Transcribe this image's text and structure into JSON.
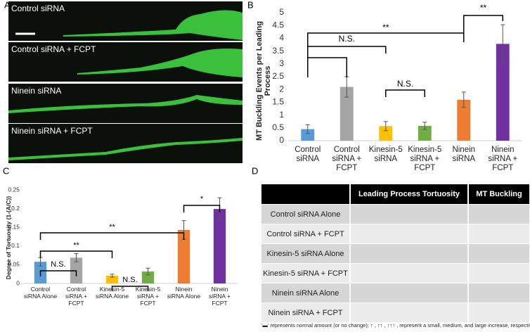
{
  "panel_labels": [
    "A",
    "B",
    "C",
    "D"
  ],
  "images": [
    "Control siRNA",
    "Control siRNA + FCPT",
    "Ninein siRNA",
    "Ninein siRNA + FCPT"
  ],
  "chart_data": [
    {
      "type": "bar",
      "y_label": "MT Buckling Events per Leading Process",
      "categories": [
        "Control siRNA",
        "Control siRNA + FCPT",
        "Kinesin-5 siRNA",
        "Kinesin-5 siRNA + FCPT",
        "Ninein siRNA",
        "Ninein siRNA + FCPT"
      ],
      "values": [
        0.45,
        2.1,
        0.57,
        0.58,
        1.6,
        3.78
      ],
      "errors": [
        0.17,
        0.4,
        0.18,
        0.14,
        0.3,
        0.75
      ],
      "colors": [
        "#5b9bd5",
        "#a5a5a5",
        "#ffc000",
        "#70ad47",
        "#ed7d31",
        "#7030a0"
      ],
      "ylim": [
        0,
        5
      ],
      "yticks": [
        0,
        0.5,
        1,
        1.5,
        2,
        2.5,
        3,
        3.5,
        4,
        4.5,
        5
      ],
      "annotations": [
        "**",
        "**",
        "N.S.",
        "N.S."
      ]
    },
    {
      "type": "bar",
      "y_label": "Degree of Tortuosity (1-(A/C))",
      "categories": [
        "Control siRNA Alone",
        "Control siRNA + FCPT",
        "Kinesin-5 siRNA Alone",
        "Kinesin-5 siRNA + FCPT",
        "Ninein siRNA Alone",
        "Ninein siRNA + FCPT"
      ],
      "values": [
        0.058,
        0.069,
        0.021,
        0.032,
        0.143,
        0.199
      ],
      "errors": [
        0.011,
        0.011,
        0.004,
        0.009,
        0.025,
        0.03
      ],
      "colors": [
        "#5b9bd5",
        "#a5a5a5",
        "#ffc000",
        "#70ad47",
        "#ed7d31",
        "#7030a0"
      ],
      "ylim": [
        0,
        0.25
      ],
      "yticks": [
        0,
        0.05,
        0.1,
        0.15,
        0.2,
        0.25
      ],
      "annotations": [
        "*",
        "**",
        "**",
        "N.S.",
        "N.S."
      ]
    }
  ],
  "table": {
    "header": [
      "Leading Process Tortuosity",
      "MT Buckling"
    ],
    "rows": [
      "Control siRNA Alone",
      "Control siRNA + FCPT",
      "Kinesin-5 siRNA Alone",
      "Kinesin-5 siRNA + FCPT",
      "Ninein siRNA Alone",
      "Ninein siRNA + FCPT"
    ],
    "footnote": "'▬' represents normal amount (or no change); ↑ , ↑↑ , ↑↑↑ , represent a small, medium, and large increase, respectively"
  }
}
